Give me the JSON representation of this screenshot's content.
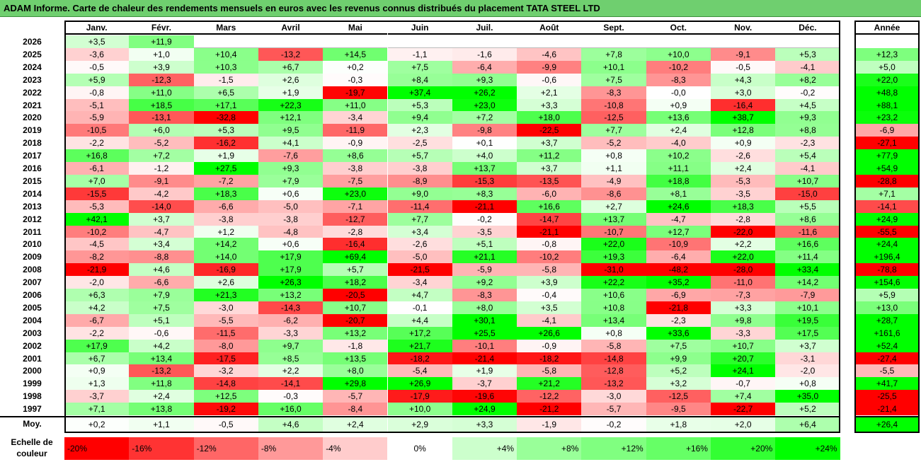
{
  "title": "ADAM Informe. Carte de chaleur des rendements mensuels en euros avec les revenus connus distribués du placement TATA STEEL LTD",
  "headers": {
    "months": [
      "Janv.",
      "Févr.",
      "Mars",
      "Avril",
      "Mai",
      "Juin",
      "Juil.",
      "Août",
      "Sept.",
      "Oct.",
      "Nov.",
      "Déc."
    ],
    "year_col": "Année",
    "avg_label": "Moy."
  },
  "chart_data": {
    "type": "heatmap",
    "title": "ADAM Informe. Carte de chaleur des rendements mensuels en euros avec les revenus connus distribués du placement TATA STEEL LTD",
    "columns": [
      "Janv.",
      "Févr.",
      "Mars",
      "Avril",
      "Mai",
      "Juin",
      "Juil.",
      "Août",
      "Sept.",
      "Oct.",
      "Nov.",
      "Déc."
    ],
    "rows": [
      {
        "year": "2026",
        "months": [
          "+3,5",
          "+11,9",
          "",
          "",
          "",
          "",
          "",
          "",
          "",
          "",
          "",
          ""
        ],
        "annee": ""
      },
      {
        "year": "2025",
        "months": [
          "-3,6",
          "+1,0",
          "+10,4",
          "-13,2",
          "+14,5",
          "-1,1",
          "-1,6",
          "-4,6",
          "+7,8",
          "+10,0",
          "-9,1",
          "+5,3"
        ],
        "annee": "+12,3"
      },
      {
        "year": "2024",
        "months": [
          "-0,5",
          "+3,9",
          "+10,3",
          "+6,7",
          "+0,2",
          "+7,5",
          "-6,4",
          "-9,9",
          "+10,1",
          "-10,2",
          "-0,5",
          "-4,1"
        ],
        "annee": "+5,0"
      },
      {
        "year": "2023",
        "months": [
          "+5,9",
          "-12,3",
          "-1,5",
          "+2,6",
          "-0,3",
          "+8,4",
          "+9,3",
          "-0,6",
          "+7,5",
          "-8,3",
          "+4,3",
          "+8,2"
        ],
        "annee": "+22,0"
      },
      {
        "year": "2022",
        "months": [
          "-0,8",
          "+11,0",
          "+6,5",
          "+1,9",
          "-19,7",
          "+37,4",
          "+26,2",
          "+2,1",
          "-8,3",
          "-0,0",
          "+3,0",
          "-0,2"
        ],
        "annee": "+48,8"
      },
      {
        "year": "2021",
        "months": [
          "-5,1",
          "+18,5",
          "+17,1",
          "+22,3",
          "+11,0",
          "+5,3",
          "+23,0",
          "+3,3",
          "-10,8",
          "+0,9",
          "-16,4",
          "+4,5"
        ],
        "annee": "+88,1"
      },
      {
        "year": "2020",
        "months": [
          "-5,9",
          "-13,1",
          "-32,8",
          "+12,1",
          "-3,4",
          "+9,4",
          "+7,2",
          "+18,0",
          "-12,5",
          "+13,6",
          "+38,7",
          "+9,3"
        ],
        "annee": "+23,2"
      },
      {
        "year": "2019",
        "months": [
          "-10,5",
          "+6,0",
          "+5,3",
          "+9,5",
          "-11,9",
          "+2,3",
          "-9,8",
          "-22,5",
          "+7,7",
          "+2,4",
          "+12,8",
          "+8,8"
        ],
        "annee": "-6,9"
      },
      {
        "year": "2018",
        "months": [
          "-2,2",
          "-5,2",
          "-16,2",
          "+4,1",
          "-0,9",
          "-2,5",
          "+0,1",
          "+3,7",
          "-5,2",
          "-4,0",
          "+0,9",
          "-2,3"
        ],
        "annee": "-27,1"
      },
      {
        "year": "2017",
        "months": [
          "+16,8",
          "+7,2",
          "+1,9",
          "-7,6",
          "+8,6",
          "+5,7",
          "+4,0",
          "+11,2",
          "+0,8",
          "+10,2",
          "-2,6",
          "+5,4"
        ],
        "annee": "+77,9"
      },
      {
        "year": "2016",
        "months": [
          "-6,1",
          "-1,2",
          "+27,5",
          "+9,3",
          "-3,8",
          "-3,8",
          "+13,7",
          "+3,7",
          "+1,1",
          "+11,1",
          "+2,4",
          "-4,1"
        ],
        "annee": "+54,9"
      },
      {
        "year": "2015",
        "months": [
          "+7,0",
          "-9,1",
          "-7,2",
          "+7,9",
          "-7,5",
          "-8,9",
          "-15,3",
          "-13,5",
          "-4,9",
          "+18,8",
          "-5,3",
          "+10,7"
        ],
        "annee": "-28,8"
      },
      {
        "year": "2014",
        "months": [
          "-15,5",
          "-4,2",
          "+18,3",
          "+0,6",
          "+23,0",
          "+9,0",
          "+8,3",
          "-6,0",
          "-8,6",
          "+8,1",
          "-3,5",
          "-15,0"
        ],
        "annee": "+7,1"
      },
      {
        "year": "2013",
        "months": [
          "-5,3",
          "-14,0",
          "-6,6",
          "-5,0",
          "-7,1",
          "-11,4",
          "-21,1",
          "+16,6",
          "+2,7",
          "+24,6",
          "+18,3",
          "+5,5"
        ],
        "annee": "-14,1"
      },
      {
        "year": "2012",
        "months": [
          "+42,1",
          "+3,7",
          "-3,8",
          "-3,8",
          "-12,7",
          "+7,7",
          "-0,2",
          "-14,7",
          "+13,7",
          "-4,7",
          "-2,8",
          "+8,6"
        ],
        "annee": "+24,9"
      },
      {
        "year": "2011",
        "months": [
          "-10,2",
          "-4,7",
          "+1,2",
          "-4,8",
          "-2,8",
          "+3,4",
          "-3,5",
          "-21,1",
          "-10,7",
          "+12,7",
          "-22,0",
          "-11,6"
        ],
        "annee": "-55,5"
      },
      {
        "year": "2010",
        "months": [
          "-4,5",
          "+3,4",
          "+14,2",
          "+0,6",
          "-16,4",
          "-2,6",
          "+5,1",
          "-0,8",
          "+22,0",
          "-10,9",
          "+2,2",
          "+16,6"
        ],
        "annee": "+24,4"
      },
      {
        "year": "2009",
        "months": [
          "-8,2",
          "-8,8",
          "+14,0",
          "+17,9",
          "+69,4",
          "-5,0",
          "+21,1",
          "-10,2",
          "+19,3",
          "-6,4",
          "+22,0",
          "+11,4"
        ],
        "annee": "+196,4"
      },
      {
        "year": "2008",
        "months": [
          "-21,9",
          "+4,6",
          "-16,9",
          "+17,9",
          "+5,7",
          "-21,5",
          "-5,9",
          "-5,8",
          "-31,0",
          "-48,2",
          "-28,0",
          "+33,4"
        ],
        "annee": "-78,8"
      },
      {
        "year": "2007",
        "months": [
          "-2,0",
          "-6,6",
          "+2,6",
          "+26,3",
          "+18,2",
          "-3,4",
          "+9,2",
          "+3,9",
          "+22,2",
          "+35,2",
          "-11,0",
          "+14,2"
        ],
        "annee": "+154,6"
      },
      {
        "year": "2006",
        "months": [
          "+6,3",
          "+7,9",
          "+21,3",
          "+13,2",
          "-20,5",
          "+4,7",
          "-8,3",
          "-0,4",
          "+10,6",
          "-6,9",
          "-7,3",
          "-7,9"
        ],
        "annee": "+5,9"
      },
      {
        "year": "2005",
        "months": [
          "+4,2",
          "+7,5",
          "-3,0",
          "-14,3",
          "+10,7",
          "-0,1",
          "+8,0",
          "+3,5",
          "+10,8",
          "-21,8",
          "+3,3",
          "+10,1"
        ],
        "annee": "+13,0"
      },
      {
        "year": "2004",
        "months": [
          "-6,7",
          "+5,1",
          "-5,5",
          "-6,2",
          "-20,7",
          "+4,4",
          "+30,1",
          "-4,1",
          "+13,4",
          "-2,3",
          "+9,8",
          "+19,5"
        ],
        "annee": "+28,7"
      },
      {
        "year": "2003",
        "months": [
          "-2,2",
          "-0,6",
          "-11,5",
          "-3,3",
          "+13,2",
          "+17,2",
          "+25,5",
          "+26,6",
          "+0,8",
          "+33,6",
          "-3,3",
          "+17,5"
        ],
        "annee": "+161,6"
      },
      {
        "year": "2002",
        "months": [
          "+17,9",
          "+4,2",
          "-8,0",
          "+9,7",
          "-1,8",
          "+21,7",
          "-10,1",
          "-0,9",
          "-5,8",
          "+7,5",
          "+10,7",
          "+3,7"
        ],
        "annee": "+52,4"
      },
      {
        "year": "2001",
        "months": [
          "+6,7",
          "+13,4",
          "-17,5",
          "+8,5",
          "+13,5",
          "-18,2",
          "-21,4",
          "-18,2",
          "-14,8",
          "+9,9",
          "+20,7",
          "-3,1"
        ],
        "annee": "-27,4"
      },
      {
        "year": "2000",
        "months": [
          "+0,9",
          "-13,2",
          "-3,2",
          "+2,2",
          "+8,0",
          "-5,4",
          "+1,9",
          "-5,8",
          "-12,8",
          "+5,2",
          "+24,1",
          "-2,0"
        ],
        "annee": "-5,5"
      },
      {
        "year": "1999",
        "months": [
          "+1,3",
          "+11,8",
          "-14,8",
          "-14,1",
          "+29,8",
          "+26,9",
          "-3,7",
          "+21,2",
          "-13,2",
          "+3,2",
          "-0,7",
          "+0,8"
        ],
        "annee": "+41,7"
      },
      {
        "year": "1998",
        "months": [
          "-3,7",
          "+2,4",
          "+12,5",
          "-0,3",
          "-5,7",
          "-17,9",
          "-19,6",
          "-12,2",
          "-3,0",
          "-12,5",
          "+7,4",
          "+35,0"
        ],
        "annee": "-25,5"
      },
      {
        "year": "1997",
        "months": [
          "+7,1",
          "+13,8",
          "-19,2",
          "+16,0",
          "-8,4",
          "+10,0",
          "+24,9",
          "-21,2",
          "-5,7",
          "-9,5",
          "-22,7",
          "+5,2"
        ],
        "annee": "-21,4"
      }
    ],
    "averages": [
      "+0,2",
      "+1,1",
      "-0,5",
      "+4,6",
      "+2,4",
      "+2,9",
      "+3,3",
      "-1,9",
      "-0,2",
      "+1,8",
      "+2,0",
      "+6,4"
    ],
    "average_annee": "+26,4",
    "color_scale": {
      "label": "Echelle de couleur",
      "stops": [
        {
          "label": "-20%",
          "value": -20,
          "color": "#ff0000"
        },
        {
          "label": "-16%",
          "value": -16,
          "color": "#ff3333"
        },
        {
          "label": "-12%",
          "value": -12,
          "color": "#ff6666"
        },
        {
          "label": "-8%",
          "value": -8,
          "color": "#ff9999"
        },
        {
          "label": "-4%",
          "value": -4,
          "color": "#ffcccc"
        },
        {
          "label": "0%",
          "value": 0,
          "color": "#ffffff"
        },
        {
          "label": "+4%",
          "value": 4,
          "color": "#ccffcc"
        },
        {
          "label": "+8%",
          "value": 8,
          "color": "#99ff99"
        },
        {
          "label": "+12%",
          "value": 12,
          "color": "#80ff80"
        },
        {
          "label": "+16%",
          "value": 16,
          "color": "#66ff66"
        },
        {
          "label": "+20%",
          "value": 20,
          "color": "#33ff33"
        },
        {
          "label": "+24%",
          "value": 24,
          "color": "#00ff00"
        }
      ]
    }
  }
}
